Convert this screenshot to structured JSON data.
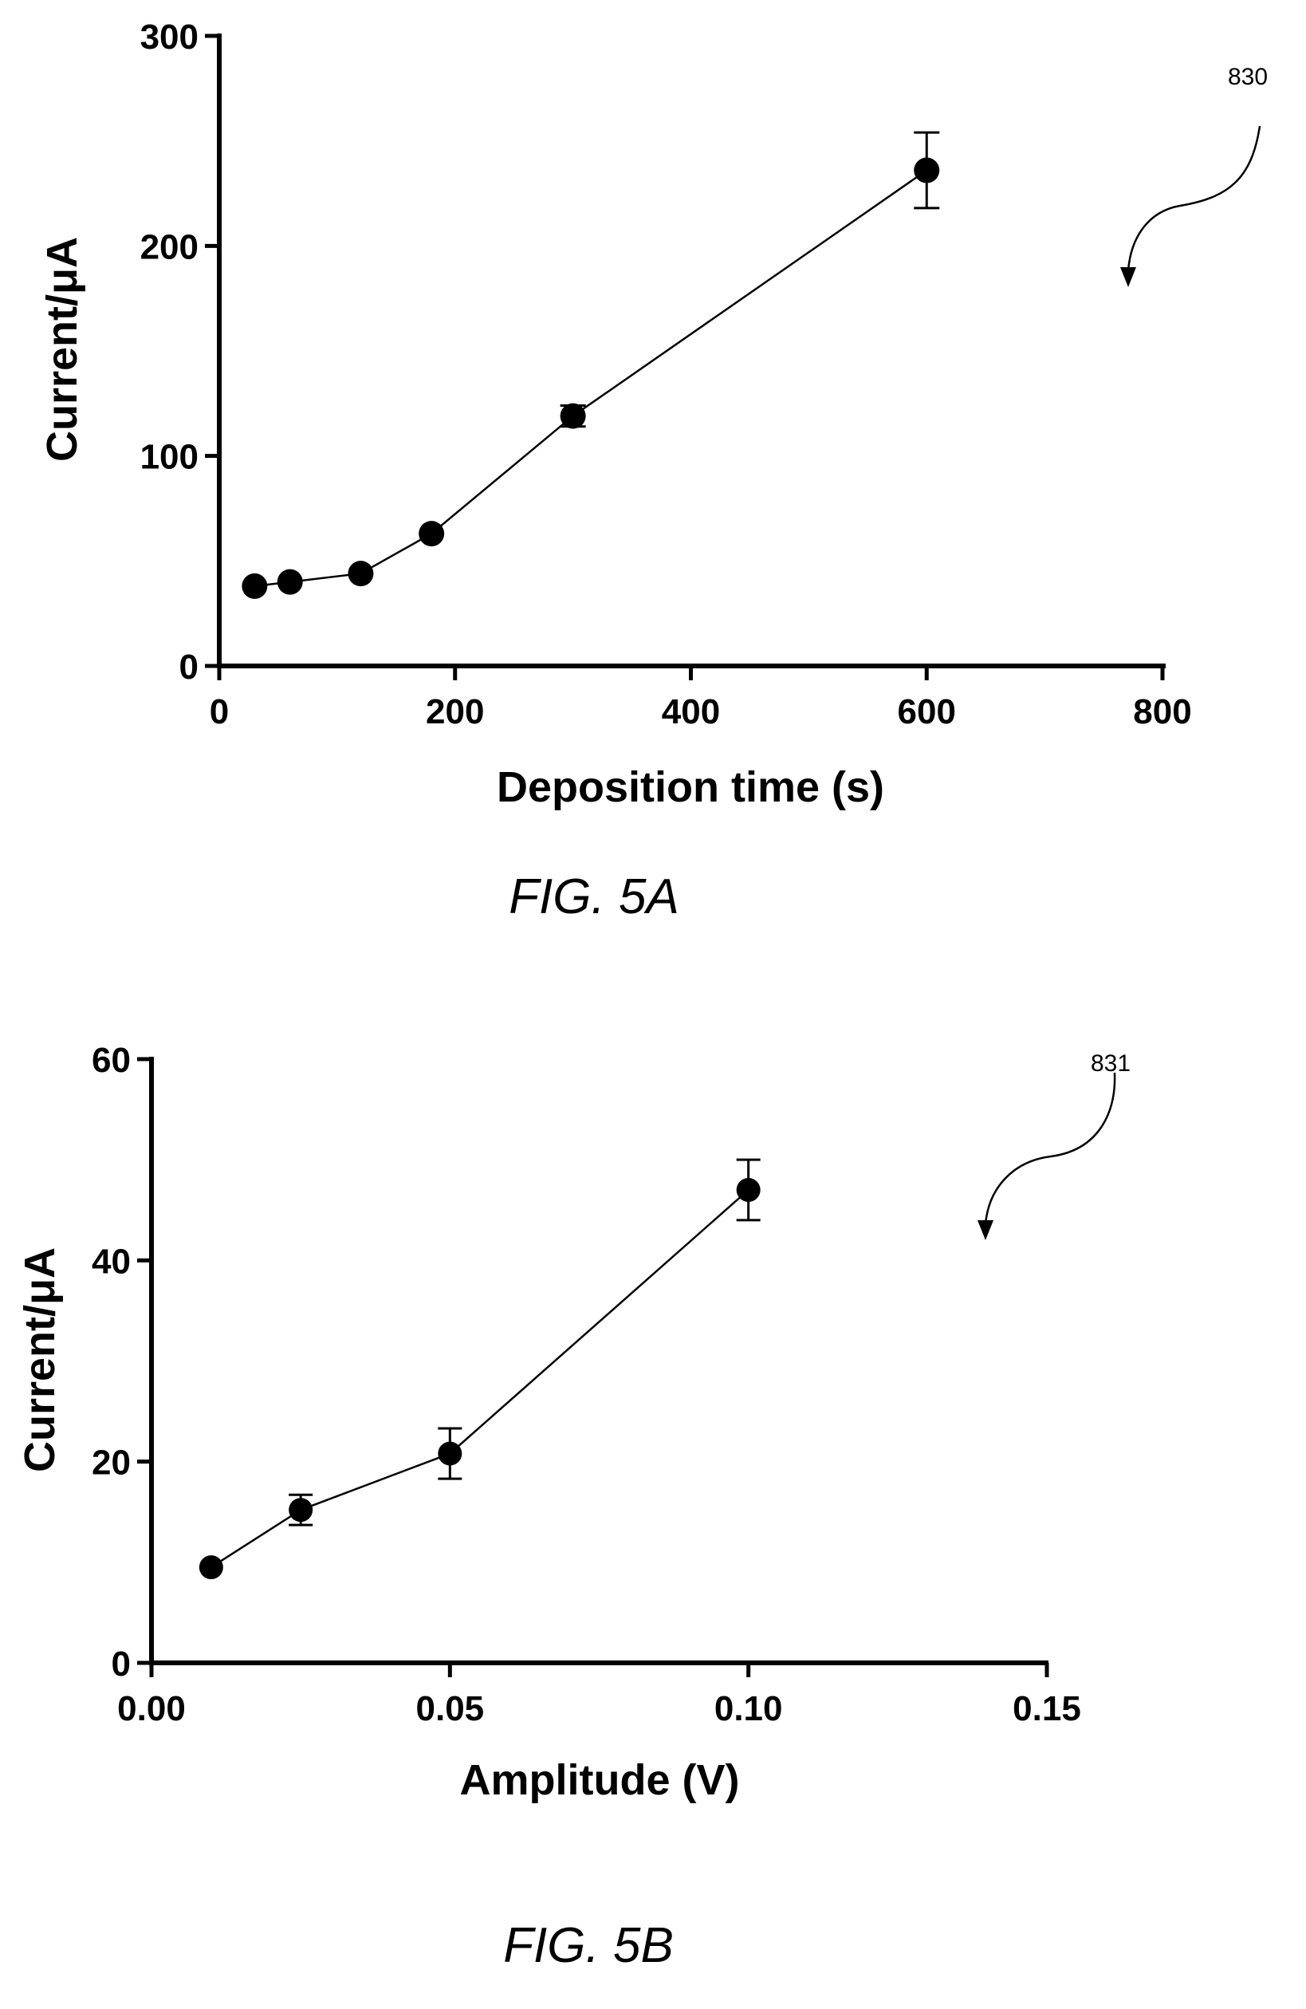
{
  "chart_data": [
    {
      "type": "scatter",
      "figure_label": "FIG. 5A",
      "reference_numeral": "830",
      "xlabel": "Deposition time (s)",
      "ylabel": "Current/μA",
      "xlim": [
        0,
        800
      ],
      "ylim": [
        0,
        300
      ],
      "x_ticks": [
        0,
        200,
        400,
        600,
        800
      ],
      "y_ticks": [
        0,
        100,
        200,
        300
      ],
      "x_tick_labels": [
        "0",
        "200",
        "400",
        "600",
        "800"
      ],
      "y_tick_labels": [
        "0",
        "100",
        "200",
        "300"
      ],
      "grid": false,
      "connected": true,
      "points": [
        {
          "x": 30,
          "y": 38,
          "err": 0
        },
        {
          "x": 60,
          "y": 40,
          "err": 0
        },
        {
          "x": 120,
          "y": 44,
          "err": 0
        },
        {
          "x": 180,
          "y": 63,
          "err": 0
        },
        {
          "x": 300,
          "y": 119,
          "err": 5
        },
        {
          "x": 600,
          "y": 236,
          "err": 18
        }
      ]
    },
    {
      "type": "scatter",
      "figure_label": "FIG. 5B",
      "reference_numeral": "831",
      "xlabel": "Amplitude (V)",
      "ylabel": "Current/μA",
      "xlim": [
        0,
        0.15
      ],
      "ylim": [
        0,
        60
      ],
      "x_ticks": [
        0,
        0.05,
        0.1,
        0.15
      ],
      "y_ticks": [
        0,
        20,
        40,
        60
      ],
      "x_tick_labels": [
        "0.00",
        "0.05",
        "0.10",
        "0.15"
      ],
      "y_tick_labels": [
        "0",
        "20",
        "40",
        "60"
      ],
      "grid": false,
      "connected": true,
      "points": [
        {
          "x": 0.01,
          "y": 9.5,
          "err": 0
        },
        {
          "x": 0.025,
          "y": 15.2,
          "err": 1.5
        },
        {
          "x": 0.05,
          "y": 20.8,
          "err": 2.5
        },
        {
          "x": 0.1,
          "y": 47,
          "err": 3
        }
      ]
    }
  ]
}
